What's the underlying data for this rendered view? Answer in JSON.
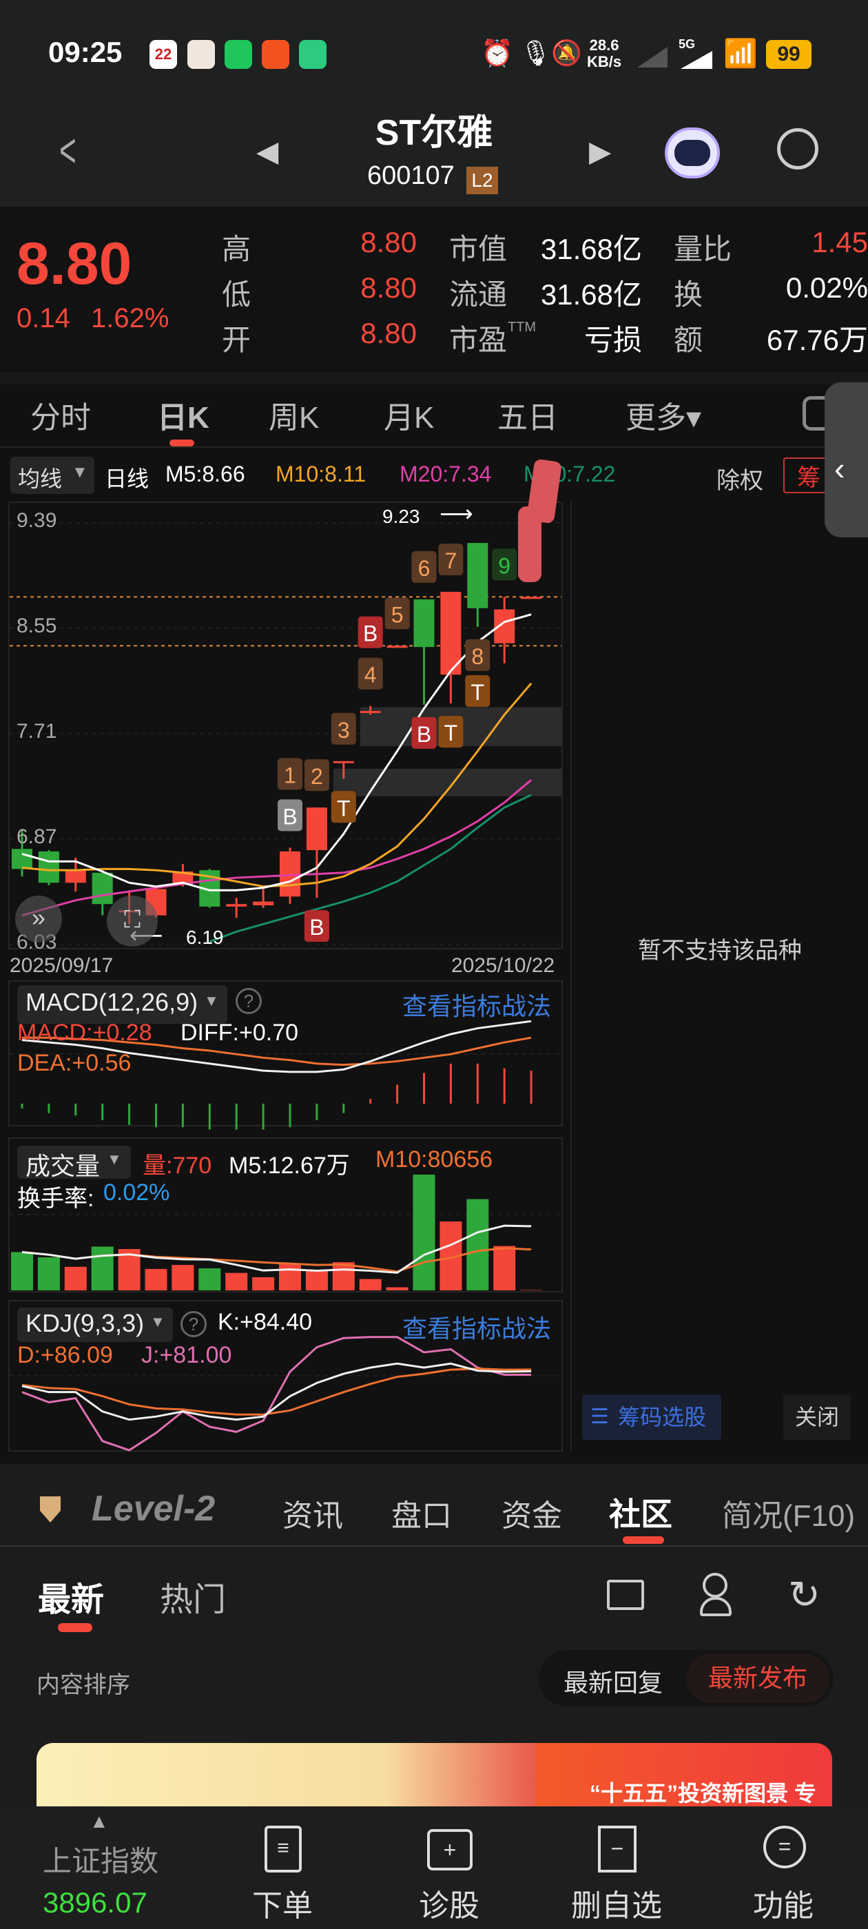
{
  "status_bar": {
    "time": "09:25",
    "net_speed": "28.6",
    "net_unit": "KB/s",
    "network": "5G",
    "battery": "99",
    "calendar_day": "22"
  },
  "header": {
    "title": "ST尔雅",
    "code": "600107",
    "badge": "L2"
  },
  "quote": {
    "price": "8.80",
    "change": "0.14",
    "change_pct": "1.62%",
    "rows": [
      {
        "l1": "高",
        "v1": "8.80",
        "l2": "市值",
        "v2": "31.68亿",
        "l3": "量比",
        "v3": "1.45"
      },
      {
        "l1": "低",
        "v1": "8.80",
        "l2": "流通",
        "v2": "31.68亿",
        "l3": "换",
        "v3": "0.02%"
      },
      {
        "l1": "开",
        "v1": "8.80",
        "l2": "市盈",
        "sup": "TTM",
        "v2": "亏损",
        "l3": "额",
        "v3": "67.76万"
      }
    ]
  },
  "period_tabs": [
    {
      "label": "分时"
    },
    {
      "label": "日K",
      "active": true
    },
    {
      "label": "周K"
    },
    {
      "label": "月K"
    },
    {
      "label": "五日"
    },
    {
      "label": "更多▾"
    }
  ],
  "ma_bar": {
    "selector": "均线",
    "period": "日线",
    "m5": "M5:8.66",
    "m10": "M10:8.11",
    "m20": "M20:7.34",
    "m30": "M30:7.22",
    "adjust": "除权",
    "chips": "筹"
  },
  "colors": {
    "up": "#f4473a",
    "down": "#2ea83a",
    "m5": "#ffffff",
    "m10": "#f5a623",
    "m20": "#e040a8",
    "m30": "#15916a",
    "link": "#3b7ddd",
    "index_up": "#3de03d"
  },
  "chart_data": [
    {
      "type": "candlestick",
      "title": "日K",
      "start_date": "2025/09/17",
      "end_date": "2025/10/22",
      "y_ticks": [
        9.39,
        8.55,
        7.71,
        6.87,
        6.03
      ],
      "max_label": "9.23",
      "min_label": "6.19",
      "reference_lines": [
        8.8,
        8.41
      ],
      "zones": [
        {
          "from_index": 13,
          "low": 7.61,
          "high": 7.92
        },
        {
          "from_index": 12,
          "low": 7.21,
          "high": 7.43
        }
      ],
      "candles": [
        {
          "o": 6.79,
          "c": 6.63,
          "h": 6.94,
          "l": 6.57
        },
        {
          "o": 6.77,
          "c": 6.52,
          "h": 6.78,
          "l": 6.5
        },
        {
          "o": 6.52,
          "c": 6.62,
          "h": 6.72,
          "l": 6.45
        },
        {
          "o": 6.6,
          "c": 6.35,
          "h": 6.62,
          "l": 6.26
        },
        {
          "o": 6.29,
          "c": 6.3,
          "h": 6.46,
          "l": 6.19
        },
        {
          "o": 6.26,
          "c": 6.47,
          "h": 6.48,
          "l": 6.24
        },
        {
          "o": 6.51,
          "c": 6.61,
          "h": 6.67,
          "l": 6.49
        },
        {
          "o": 6.62,
          "c": 6.33,
          "h": 6.63,
          "l": 6.32
        },
        {
          "o": 6.33,
          "c": 6.35,
          "h": 6.4,
          "l": 6.24
        },
        {
          "o": 6.34,
          "c": 6.37,
          "h": 6.47,
          "l": 6.32
        },
        {
          "o": 6.41,
          "c": 6.77,
          "h": 6.8,
          "l": 6.35
        },
        {
          "o": 6.78,
          "c": 7.12,
          "h": 7.12,
          "l": 6.4
        },
        {
          "o": 7.48,
          "c": 7.49,
          "h": 7.49,
          "l": 7.35
        },
        {
          "o": 7.88,
          "c": 7.89,
          "h": 7.93,
          "l": 7.86
        },
        {
          "o": 8.41,
          "c": 8.41,
          "h": 8.41,
          "l": 8.41
        },
        {
          "o": 8.78,
          "c": 8.4,
          "h": 8.78,
          "l": 7.94
        },
        {
          "o": 8.18,
          "c": 8.84,
          "h": 8.84,
          "l": 7.95
        },
        {
          "o": 9.23,
          "c": 8.71,
          "h": 9.23,
          "l": 8.56
        },
        {
          "o": 8.43,
          "c": 8.7,
          "h": 8.8,
          "l": 8.27
        },
        {
          "o": 8.8,
          "c": 8.8,
          "h": 8.8,
          "l": 8.8
        }
      ],
      "ma": {
        "m5": [
          6.75,
          6.69,
          6.69,
          6.61,
          6.52,
          6.49,
          6.52,
          6.46,
          6.46,
          6.48,
          6.53,
          6.64,
          6.91,
          7.25,
          7.57,
          7.91,
          8.21,
          8.44,
          8.6,
          8.66
        ],
        "m10": [
          6.64,
          6.62,
          6.62,
          6.63,
          6.63,
          6.62,
          6.6,
          6.57,
          6.53,
          6.49,
          6.5,
          6.52,
          6.57,
          6.67,
          6.81,
          7.03,
          7.29,
          7.57,
          7.86,
          8.11
        ],
        "m20": [
          6.26,
          6.32,
          6.38,
          6.42,
          6.45,
          6.48,
          6.51,
          6.54,
          6.56,
          6.57,
          6.58,
          6.59,
          6.6,
          6.64,
          6.71,
          6.79,
          6.89,
          7.01,
          7.16,
          7.34
        ],
        "m30": [
          null,
          null,
          null,
          null,
          null,
          null,
          null,
          6.05,
          6.13,
          6.19,
          6.25,
          6.31,
          6.37,
          6.44,
          6.53,
          6.66,
          6.79,
          6.96,
          7.12,
          7.22
        ]
      },
      "markers": [
        {
          "i": 10,
          "text": "B",
          "pos": "above",
          "kind": "gray"
        },
        {
          "i": 10,
          "text": "1",
          "pos": "above2",
          "kind": "num"
        },
        {
          "i": 11,
          "text": "2",
          "pos": "above",
          "kind": "num"
        },
        {
          "i": 11,
          "text": "B",
          "pos": "below",
          "kind": "buy"
        },
        {
          "i": 12,
          "text": "3",
          "pos": "above",
          "kind": "num"
        },
        {
          "i": 12,
          "text": "T",
          "pos": "below",
          "kind": "t"
        },
        {
          "i": 13,
          "text": "4",
          "pos": "above",
          "kind": "num"
        },
        {
          "i": 13,
          "text": "B",
          "pos": "above2",
          "kind": "buy"
        },
        {
          "i": 14,
          "text": "5",
          "pos": "above",
          "kind": "num"
        },
        {
          "i": 15,
          "text": "6",
          "pos": "above",
          "kind": "num"
        },
        {
          "i": 15,
          "text": "B",
          "pos": "below",
          "kind": "buy"
        },
        {
          "i": 16,
          "text": "7",
          "pos": "above",
          "kind": "num"
        },
        {
          "i": 16,
          "text": "T",
          "pos": "below",
          "kind": "t"
        },
        {
          "i": 17,
          "text": "8",
          "pos": "below",
          "kind": "num"
        },
        {
          "i": 17,
          "text": "T",
          "pos": "below2",
          "kind": "t"
        },
        {
          "i": 18,
          "text": "9",
          "pos": "above",
          "kind": "green"
        }
      ]
    },
    {
      "type": "macd",
      "title": "MACD(12,26,9)",
      "macd_label": "MACD:+0.28",
      "diff_label": "DIFF:+0.70",
      "dea_label": "DEA:+0.56",
      "diff": [
        0.54,
        0.52,
        0.5,
        0.47,
        0.43,
        0.4,
        0.37,
        0.34,
        0.31,
        0.28,
        0.27,
        0.27,
        0.29,
        0.36,
        0.44,
        0.52,
        0.59,
        0.64,
        0.67,
        0.7
      ],
      "dea": [
        0.56,
        0.56,
        0.55,
        0.54,
        0.52,
        0.5,
        0.47,
        0.45,
        0.42,
        0.39,
        0.37,
        0.34,
        0.33,
        0.34,
        0.36,
        0.39,
        0.42,
        0.47,
        0.52,
        0.56
      ],
      "macd": [
        -0.04,
        -0.08,
        -0.1,
        -0.14,
        -0.18,
        -0.2,
        -0.2,
        -0.22,
        -0.22,
        -0.22,
        -0.2,
        -0.14,
        -0.08,
        0.04,
        0.16,
        0.26,
        0.34,
        0.34,
        0.3,
        0.28
      ]
    },
    {
      "type": "bar",
      "title": "成交量",
      "vol_label": "量:770",
      "m5_label": "M5:12.67万",
      "m10_label": "M10:80656",
      "turnover_label": "换手率:",
      "turnover": "0.02%",
      "values": [
        75700,
        65400,
        46600,
        86600,
        81800,
        42400,
        50300,
        43600,
        34500,
        26000,
        52700,
        37600,
        55700,
        22400,
        6100,
        229000,
        136300,
        180500,
        87800,
        770
      ]
    },
    {
      "type": "line",
      "title": "KDJ(9,3,3)",
      "k_label": "K:+84.40",
      "d_label": "D:+86.09",
      "j_label": "J:+81.00",
      "k": [
        70,
        64,
        64,
        45,
        37,
        40,
        45,
        40,
        37,
        40,
        60,
        73,
        82,
        88,
        92,
        88,
        92,
        85,
        84,
        84.4
      ],
      "d": [
        71,
        68,
        67,
        60,
        52,
        48,
        47,
        44,
        42,
        42,
        46,
        55,
        64,
        72,
        79,
        82,
        86,
        87,
        86,
        86.09
      ],
      "j": [
        64,
        54,
        58,
        16,
        7,
        24,
        45,
        30,
        25,
        36,
        84,
        108,
        117,
        118,
        118,
        103,
        106,
        88,
        81,
        81
      ]
    }
  ],
  "indicator_link": "查看指标战法",
  "chips_panel": {
    "message": "暂不支持该品种",
    "select_button": "筹码选股",
    "close_button": "关闭"
  },
  "info_tabs": [
    {
      "label": "资讯"
    },
    {
      "label": "盘口"
    },
    {
      "label": "资金"
    },
    {
      "label": "社区",
      "active": true
    },
    {
      "label": "简况(F10)"
    }
  ],
  "level2": "Level-2",
  "community": {
    "tabs": [
      {
        "label": "最新"
      },
      {
        "label": "热门"
      }
    ],
    "sort_label": "内容排序",
    "sort_options": [
      {
        "label": "最新回复"
      },
      {
        "label": "最新发布"
      }
    ],
    "banner_text": "“十五五”投资新图景 专"
  },
  "bottom_nav": {
    "index_name": "上证指数",
    "index_value": "3896.07",
    "items": [
      {
        "label": "下单"
      },
      {
        "label": "诊股"
      },
      {
        "label": "删自选"
      },
      {
        "label": "功能"
      }
    ]
  }
}
